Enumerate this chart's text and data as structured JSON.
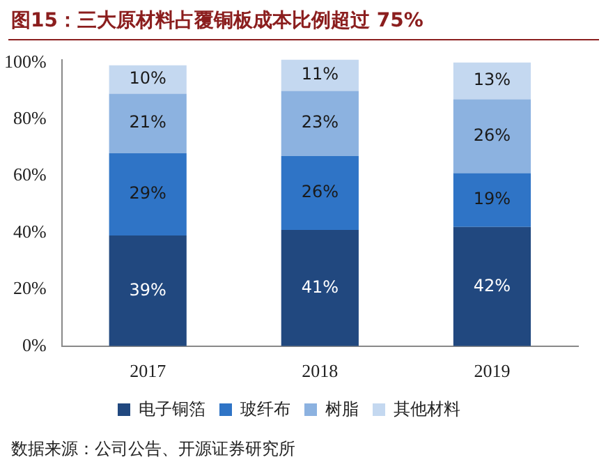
{
  "chart_data": {
    "type": "bar",
    "stacked": true,
    "title": "图15：三大原材料占覆铜板成本比例超过 75%",
    "categories": [
      "2017",
      "2018",
      "2019"
    ],
    "series": [
      {
        "name": "电子铜箔",
        "color": "#21487f",
        "values": [
          39,
          41,
          42
        ],
        "value_labels": [
          "39%",
          "41%",
          "42%"
        ]
      },
      {
        "name": "玻纤布",
        "color": "#2f74c6",
        "values": [
          29,
          26,
          19
        ],
        "value_labels": [
          "29%",
          "26%",
          "19%"
        ]
      },
      {
        "name": "树脂",
        "color": "#8cb2e0",
        "values": [
          21,
          23,
          26
        ],
        "value_labels": [
          "21%",
          "23%",
          "26%"
        ]
      },
      {
        "name": "其他材料",
        "color": "#c4d8f0",
        "values": [
          10,
          11,
          13
        ],
        "value_labels": [
          "10%",
          "11%",
          "13%"
        ]
      }
    ],
    "ylim": [
      0,
      101
    ],
    "yticks": [
      {
        "value": 0,
        "label": "0%"
      },
      {
        "value": 20,
        "label": "20%"
      },
      {
        "value": 40,
        "label": "40%"
      },
      {
        "value": 60,
        "label": "60%"
      },
      {
        "value": 80,
        "label": "80%"
      },
      {
        "value": 100,
        "label": "100%"
      }
    ],
    "grid": false,
    "legend": "bottom",
    "annotations": [
      "数据来源：公司公告、开源证券研究所"
    ]
  }
}
